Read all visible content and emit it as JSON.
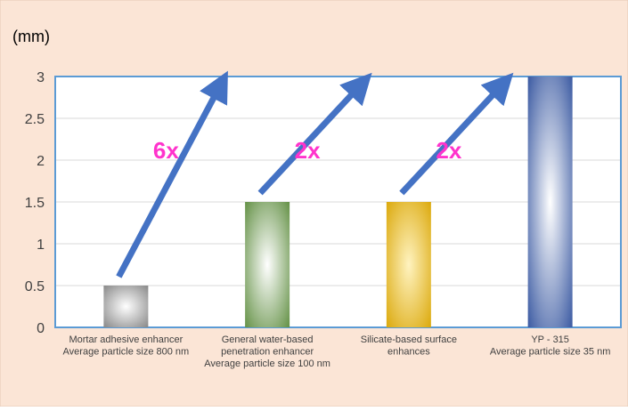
{
  "chart_data": {
    "type": "bar",
    "unit_label": "(mm)",
    "categories": [
      [
        "Mortar adhesive enhancer",
        "Average particle size 800 nm"
      ],
      [
        "General water-based",
        "penetration enhancer",
        "Average particle size 100 nm"
      ],
      [
        "Silicate-based surface",
        "enhances"
      ],
      [
        "YP - 315",
        "Average particle size 35 nm"
      ]
    ],
    "values": [
      0.5,
      1.5,
      1.5,
      3.0
    ],
    "ylim": [
      0,
      3
    ],
    "yticks": [
      "0",
      "0.5",
      "1",
      "1.5",
      "2",
      "2.5",
      "3"
    ],
    "grid": true,
    "bar_colors": [
      {
        "edge": "#808080",
        "center": "#ffffff"
      },
      {
        "edge": "#5a8a3a",
        "center": "#ffffff"
      },
      {
        "edge": "#d9a400",
        "center": "#fff3c0"
      },
      {
        "edge": "#2e4f9c",
        "center": "#ffffff"
      }
    ],
    "annotations": [
      {
        "label": "6x",
        "from_bar": 0
      },
      {
        "label": "2x",
        "from_bar": 1
      },
      {
        "label": "2x",
        "from_bar": 2
      }
    ],
    "colors": {
      "background": "#fbe5d6",
      "plot_background": "#ffffff",
      "plot_border": "#5b9bd5",
      "arrow": "#4472c4",
      "annotation_text": "#ff33cc",
      "grid": "#d9d9d9",
      "text": "#404040"
    }
  }
}
